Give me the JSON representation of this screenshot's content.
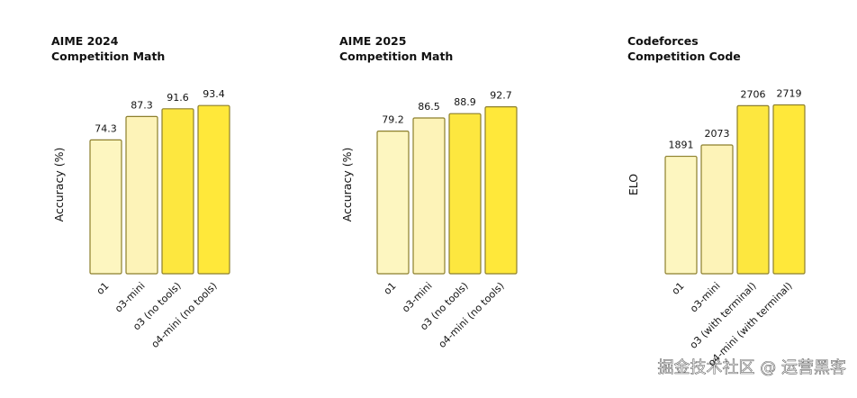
{
  "chart_data": [
    {
      "type": "bar",
      "title": "AIME 2024",
      "subtitle": "Competition Math",
      "y_label": "Accuracy (%)",
      "categories": [
        "o1",
        "o3-mini",
        "o3 (no tools)",
        "o4-mini (no tools)"
      ],
      "values": [
        74.3,
        87.3,
        91.6,
        93.4
      ],
      "colors": [
        "#fdf6c0",
        "#fdf3b8",
        "#fde73f",
        "#ffe83a"
      ],
      "ylim": [
        0,
        100
      ]
    },
    {
      "type": "bar",
      "title": "AIME 2025",
      "subtitle": "Competition Math",
      "y_label": "Accuracy (%)",
      "categories": [
        "o1",
        "o3-mini",
        "o3 (no tools)",
        "o4-mini (no tools)"
      ],
      "values": [
        79.2,
        86.5,
        88.9,
        92.7
      ],
      "colors": [
        "#fdf6c0",
        "#fdf3b8",
        "#fde73f",
        "#ffe83a"
      ],
      "ylim": [
        0,
        100
      ]
    },
    {
      "type": "bar",
      "title": "Codeforces",
      "subtitle": "Competition Code",
      "y_label": "ELO",
      "categories": [
        "o1",
        "o3-mini",
        "o3 (with terminal)",
        "o4-mini (with terminal)"
      ],
      "values": [
        1891,
        2073,
        2706,
        2719
      ],
      "colors": [
        "#fdf6c0",
        "#fdf3b8",
        "#fde73f",
        "#ffe83a"
      ],
      "ylim": [
        0,
        2900
      ]
    }
  ],
  "watermark": "掘金技术社区 @ 运营黑客"
}
